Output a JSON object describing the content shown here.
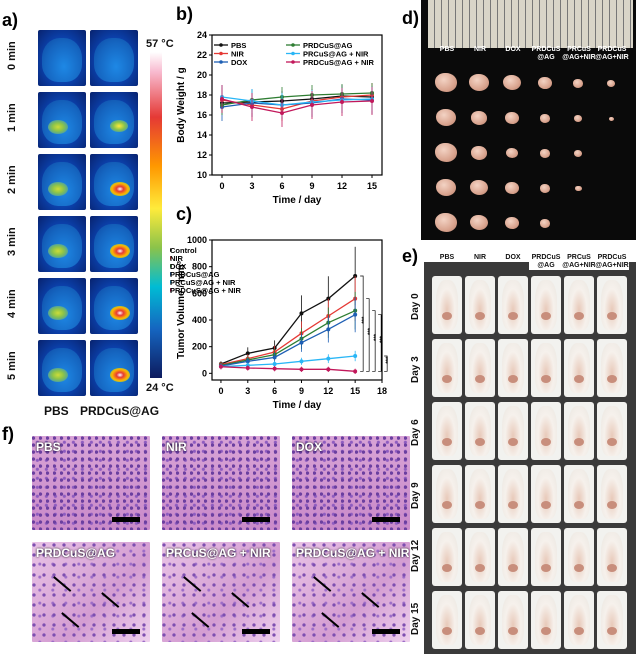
{
  "panel_labels": {
    "a": "a)",
    "b": "b)",
    "c": "c)",
    "d": "d)",
    "e": "e)",
    "f": "f)"
  },
  "panel_a": {
    "times": [
      "0 min",
      "1 min",
      "2 min",
      "3 min",
      "4 min",
      "5 min"
    ],
    "columns": [
      "PBS",
      "PRDCuS@AG"
    ],
    "scale_max": "57 °C",
    "scale_min": "24 °C"
  },
  "panel_d": {
    "columns": [
      "PBS",
      "NIR",
      "DOX",
      "PRDCuS @AG",
      "PRCuS @AG+NIR",
      "PRDCuS @AG+NIR"
    ]
  },
  "panel_e": {
    "columns": [
      "PBS",
      "NIR",
      "DOX",
      "PRDCuS @AG",
      "PRCuS @AG+NIR",
      "PRDCuS @AG+NIR"
    ],
    "days": [
      "Day 0",
      "Day 3",
      "Day 6",
      "Day 9",
      "Day 12",
      "Day 15"
    ]
  },
  "panel_f": {
    "titles": [
      "PBS",
      "NIR",
      "DOX",
      "PRDCuS@AG",
      "PRCuS@AG + NIR",
      "PRDCuS@AG + NIR"
    ]
  },
  "chart_data": [
    {
      "type": "line",
      "xlabel": "Time / day",
      "ylabel": "Body Weight / g",
      "x": [
        0,
        3,
        6,
        9,
        12,
        15
      ],
      "xlim": [
        -1,
        16
      ],
      "ylim": [
        10,
        24
      ],
      "yticks": [
        10,
        12,
        14,
        16,
        18,
        20,
        22,
        24
      ],
      "legend_position": "top-left",
      "series": [
        {
          "name": "PBS",
          "color": "#111111",
          "values": [
            17.2,
            17.3,
            17.4,
            17.6,
            17.9,
            17.8
          ]
        },
        {
          "name": "NIR",
          "color": "#e53935",
          "values": [
            17.5,
            17.0,
            16.6,
            17.4,
            17.8,
            18.0
          ]
        },
        {
          "name": "DOX",
          "color": "#1e5fb4",
          "values": [
            16.8,
            17.2,
            17.0,
            17.2,
            17.6,
            17.5
          ]
        },
        {
          "name": "PRDCuS@AG",
          "color": "#2e7d32",
          "values": [
            17.0,
            17.5,
            17.8,
            18.0,
            18.1,
            18.2
          ]
        },
        {
          "name": "PRCuS@AG + NIR",
          "color": "#29b6f6",
          "values": [
            17.8,
            17.4,
            17.0,
            17.3,
            17.5,
            17.6
          ]
        },
        {
          "name": "PRDCuS@AG + NIR",
          "color": "#c2185b",
          "values": [
            17.6,
            16.8,
            16.2,
            17.0,
            17.3,
            17.4
          ]
        }
      ]
    },
    {
      "type": "line",
      "xlabel": "Time / day",
      "ylabel": "Tumor Volume / mm³",
      "x": [
        0,
        3,
        6,
        9,
        12,
        15
      ],
      "xlim": [
        -1,
        18
      ],
      "ylim": [
        -50,
        1000
      ],
      "yticks": [
        0,
        200,
        400,
        600,
        800,
        1000
      ],
      "xticks": [
        0,
        3,
        6,
        9,
        12,
        15,
        18
      ],
      "legend_position": "top-left",
      "series": [
        {
          "name": "Control",
          "color": "#111111",
          "values": [
            70,
            150,
            190,
            450,
            560,
            730
          ]
        },
        {
          "name": "NIR",
          "color": "#e53935",
          "values": [
            65,
            110,
            160,
            300,
            430,
            560
          ]
        },
        {
          "name": "DOX",
          "color": "#2e7d32",
          "values": [
            60,
            100,
            140,
            260,
            380,
            470
          ]
        },
        {
          "name": "PRDCuS@AG",
          "color": "#1e5fb4",
          "values": [
            55,
            90,
            120,
            230,
            330,
            440
          ]
        },
        {
          "name": "PRCuS@AG + NIR",
          "color": "#29b6f6",
          "values": [
            50,
            60,
            70,
            90,
            110,
            130
          ]
        },
        {
          "name": "PRDCuS@AG + NIR",
          "color": "#c2185b",
          "values": [
            50,
            40,
            35,
            30,
            30,
            15
          ]
        }
      ],
      "significance": [
        "***",
        "***",
        "***",
        "***",
        "***"
      ]
    }
  ]
}
